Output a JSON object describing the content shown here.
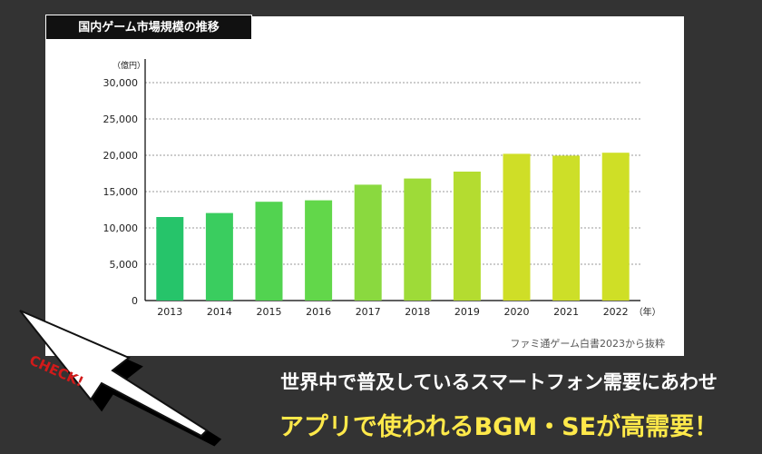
{
  "chart_title": "国内ゲーム市場規模の推移",
  "chart_data": {
    "type": "bar",
    "title": "国内ゲーム市場規模の推移",
    "ylabel": "（億円）",
    "xlabel": "（年）",
    "categories": [
      "2013",
      "2014",
      "2015",
      "2016",
      "2017",
      "2018",
      "2019",
      "2020",
      "2021",
      "2022"
    ],
    "values": [
      11500,
      12050,
      13600,
      13800,
      15950,
      16800,
      17750,
      20200,
      19950,
      20350
    ],
    "ylim": [
      0,
      30000
    ],
    "yticks": [
      "0",
      "5,000",
      "10,000",
      "15,000",
      "20,000",
      "25,000",
      "30,000"
    ],
    "grid": true,
    "bar_colors": [
      "#26c46a",
      "#3acd5f",
      "#52d350",
      "#62d74a",
      "#8ad93f",
      "#9edb38",
      "#b4dc30",
      "#cfde27",
      "#cddf28",
      "#cfdf26"
    ]
  },
  "source_note": "ファミ通ゲーム白書2023から抜粋",
  "check_label": "CHECK!",
  "tagline_line1": "世界中で普及しているスマートフォン需要にあわせ",
  "tagline_line2": "アプリで使われるBGM・SEが高需要！"
}
